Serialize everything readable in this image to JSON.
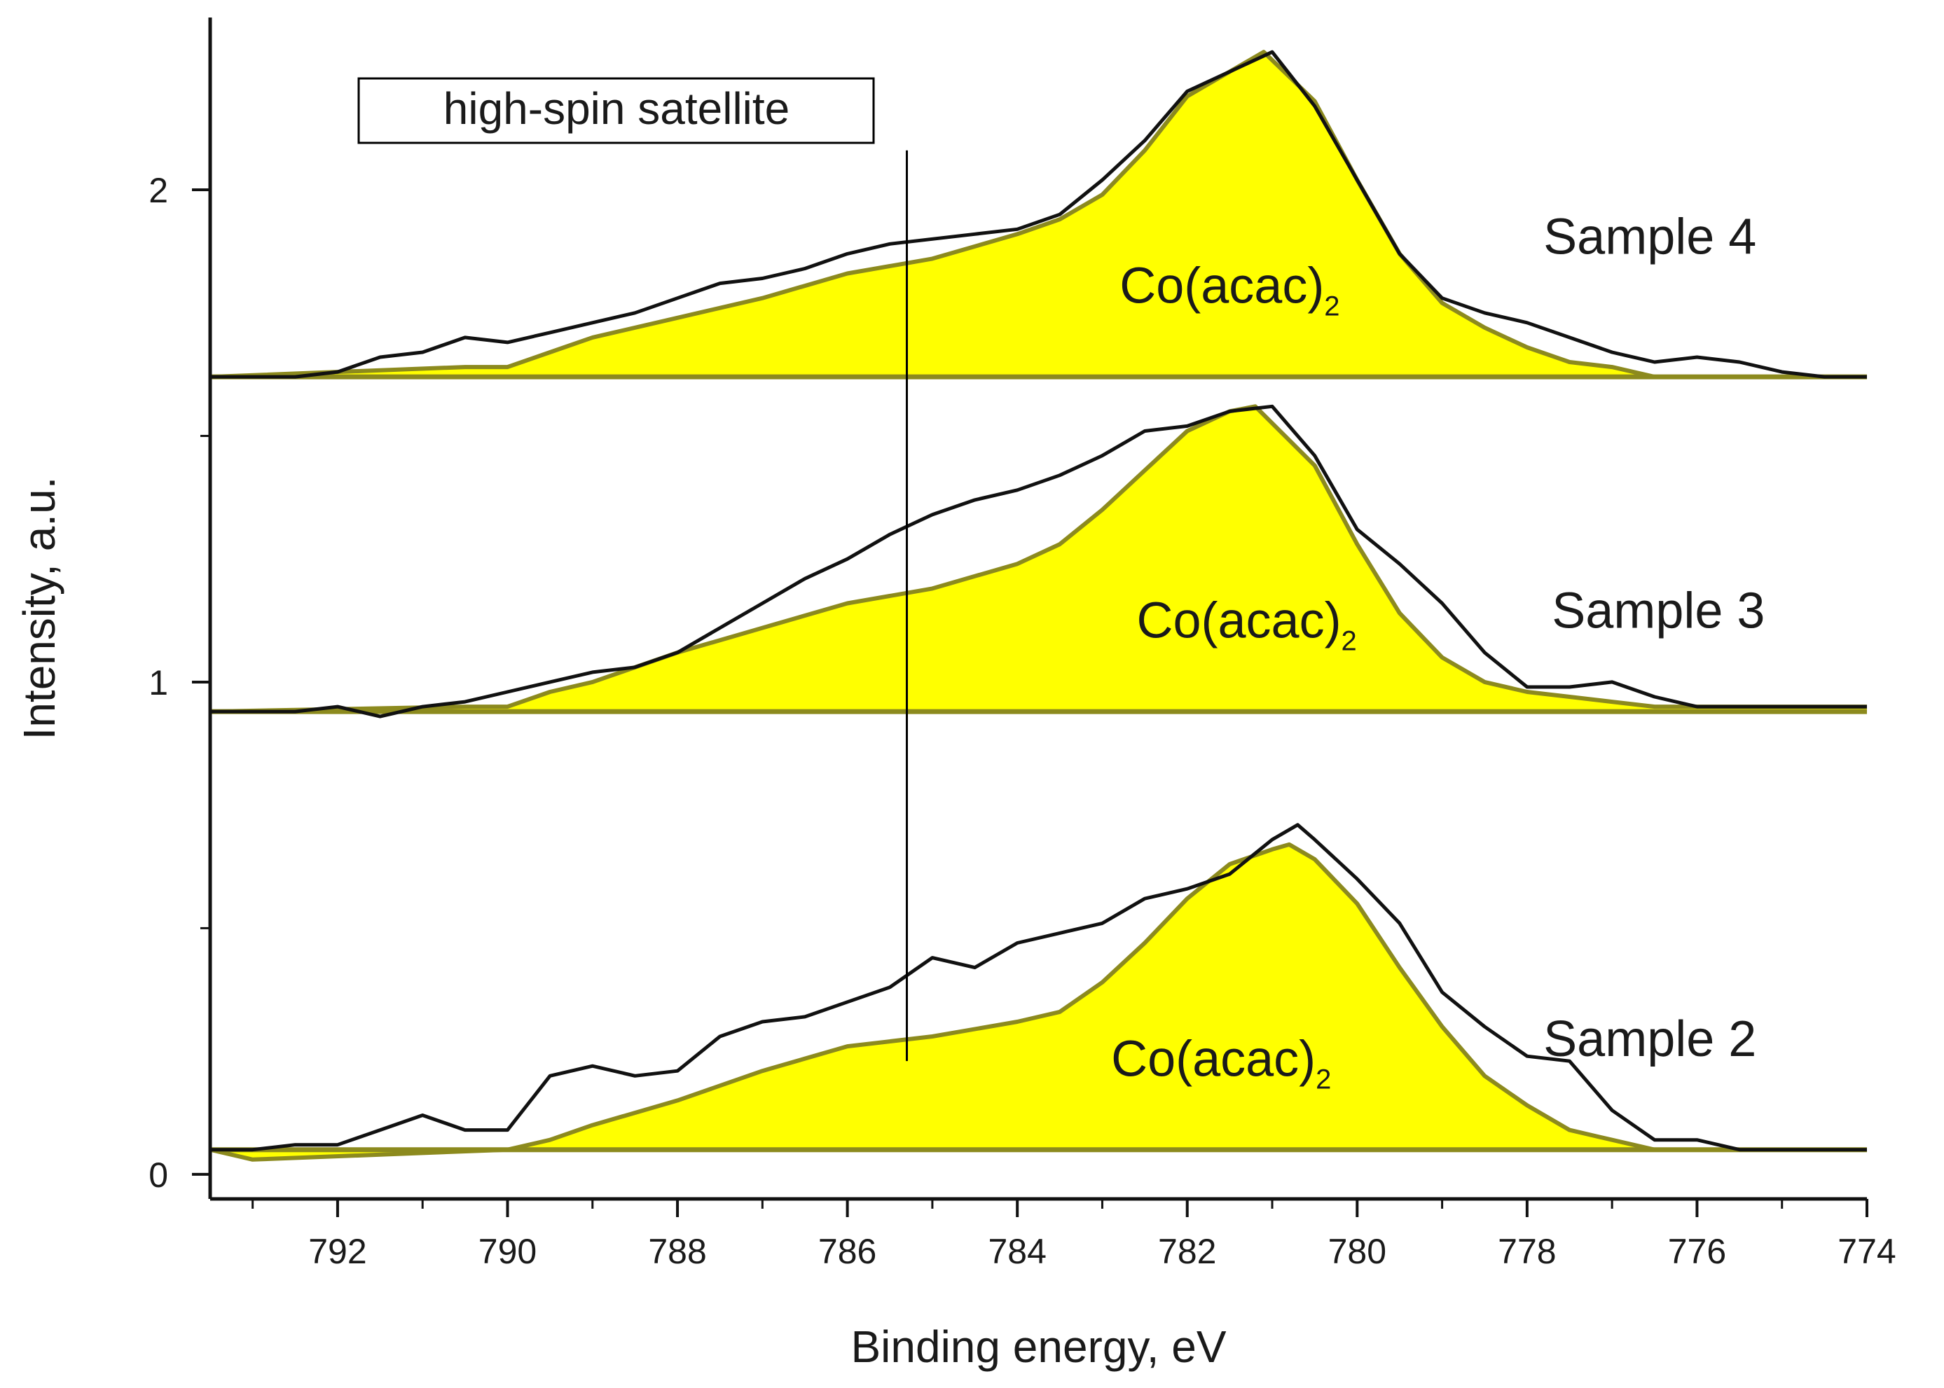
{
  "chart_data": {
    "type": "line",
    "title": "",
    "xlabel": "Binding energy, eV",
    "ylabel": "Intensity, a.u.",
    "xlim": [
      793.5,
      774
    ],
    "ylim": [
      -0.05,
      2.35
    ],
    "x_ticks": [
      792,
      790,
      788,
      786,
      784,
      782,
      780,
      778,
      776,
      774
    ],
    "y_ticks_major": [
      0,
      1,
      2
    ],
    "y_ticks_minor": [
      0.5,
      1.5
    ],
    "colors": {
      "measured": "#111111",
      "fit_fill": "#ffff00",
      "fit_edge": "#8c8a1e",
      "axis": "#111111"
    },
    "annotation": {
      "text": "high-spin satellite",
      "x": 785.3,
      "line_from": 2.08,
      "line_to": 0.23
    },
    "series": [
      {
        "name": "Sample 4",
        "fit_label": "Co(acac)",
        "fit_subscript": "2",
        "label_x": 775.3,
        "label_y": 1.87,
        "fit_label_x": 781.5,
        "fit_label_y": 1.77,
        "baseline": 1.62,
        "measured": [
          [
            793.5,
            1.62
          ],
          [
            792.5,
            1.62
          ],
          [
            792,
            1.63
          ],
          [
            791.5,
            1.66
          ],
          [
            791,
            1.67
          ],
          [
            790.5,
            1.7
          ],
          [
            790,
            1.69
          ],
          [
            789.5,
            1.71
          ],
          [
            789,
            1.73
          ],
          [
            788.5,
            1.75
          ],
          [
            788,
            1.78
          ],
          [
            787.5,
            1.81
          ],
          [
            787,
            1.82
          ],
          [
            786.5,
            1.84
          ],
          [
            786,
            1.87
          ],
          [
            785.5,
            1.89
          ],
          [
            785,
            1.9
          ],
          [
            784.5,
            1.91
          ],
          [
            784,
            1.92
          ],
          [
            783.5,
            1.95
          ],
          [
            783,
            2.02
          ],
          [
            782.5,
            2.1
          ],
          [
            782,
            2.2
          ],
          [
            781.5,
            2.24
          ],
          [
            781,
            2.28
          ],
          [
            780.5,
            2.17
          ],
          [
            780,
            2.02
          ],
          [
            779.5,
            1.87
          ],
          [
            779,
            1.78
          ],
          [
            778.5,
            1.75
          ],
          [
            778,
            1.73
          ],
          [
            777.5,
            1.7
          ],
          [
            777,
            1.67
          ],
          [
            776.5,
            1.65
          ],
          [
            776,
            1.66
          ],
          [
            775.5,
            1.65
          ],
          [
            775,
            1.63
          ],
          [
            774.5,
            1.62
          ],
          [
            774,
            1.62
          ]
        ],
        "fit": [
          [
            793.5,
            1.62
          ],
          [
            790.5,
            1.64
          ],
          [
            790,
            1.64
          ],
          [
            789.5,
            1.67
          ],
          [
            789,
            1.7
          ],
          [
            788,
            1.74
          ],
          [
            787,
            1.78
          ],
          [
            786,
            1.83
          ],
          [
            785,
            1.86
          ],
          [
            784,
            1.91
          ],
          [
            783.5,
            1.94
          ],
          [
            783,
            1.99
          ],
          [
            782.5,
            2.08
          ],
          [
            782,
            2.19
          ],
          [
            781.5,
            2.24
          ],
          [
            781.1,
            2.28
          ],
          [
            780.5,
            2.18
          ],
          [
            780,
            2.02
          ],
          [
            779.5,
            1.87
          ],
          [
            779,
            1.77
          ],
          [
            778.5,
            1.72
          ],
          [
            778,
            1.68
          ],
          [
            777.5,
            1.65
          ],
          [
            777,
            1.64
          ],
          [
            776.5,
            1.62
          ],
          [
            774,
            1.62
          ]
        ]
      },
      {
        "name": "Sample 3",
        "fit_label": "Co(acac)",
        "fit_subscript": "2",
        "label_x": 775.2,
        "label_y": 1.11,
        "fit_label_x": 781.3,
        "fit_label_y": 1.09,
        "baseline": 0.94,
        "measured": [
          [
            793.5,
            0.94
          ],
          [
            792.5,
            0.94
          ],
          [
            792,
            0.95
          ],
          [
            791.5,
            0.93
          ],
          [
            791,
            0.95
          ],
          [
            790.5,
            0.96
          ],
          [
            790,
            0.98
          ],
          [
            789.5,
            1.0
          ],
          [
            789,
            1.02
          ],
          [
            788.5,
            1.03
          ],
          [
            788,
            1.06
          ],
          [
            787.5,
            1.11
          ],
          [
            787,
            1.16
          ],
          [
            786.5,
            1.21
          ],
          [
            786,
            1.25
          ],
          [
            785.5,
            1.3
          ],
          [
            785,
            1.34
          ],
          [
            784.5,
            1.37
          ],
          [
            784,
            1.39
          ],
          [
            783.5,
            1.42
          ],
          [
            783,
            1.46
          ],
          [
            782.5,
            1.51
          ],
          [
            782,
            1.52
          ],
          [
            781.5,
            1.55
          ],
          [
            781,
            1.56
          ],
          [
            780.5,
            1.46
          ],
          [
            780,
            1.31
          ],
          [
            779.5,
            1.24
          ],
          [
            779,
            1.16
          ],
          [
            778.5,
            1.06
          ],
          [
            778,
            0.99
          ],
          [
            777.5,
            0.99
          ],
          [
            777,
            1.0
          ],
          [
            776.5,
            0.97
          ],
          [
            776,
            0.95
          ],
          [
            774,
            0.95
          ]
        ],
        "fit": [
          [
            793.5,
            0.94
          ],
          [
            790.5,
            0.95
          ],
          [
            790,
            0.95
          ],
          [
            789.5,
            0.98
          ],
          [
            789,
            1.0
          ],
          [
            788,
            1.06
          ],
          [
            787,
            1.11
          ],
          [
            786,
            1.16
          ],
          [
            785,
            1.19
          ],
          [
            784,
            1.24
          ],
          [
            783.5,
            1.28
          ],
          [
            783,
            1.35
          ],
          [
            782.5,
            1.43
          ],
          [
            782,
            1.51
          ],
          [
            781.5,
            1.55
          ],
          [
            781.2,
            1.56
          ],
          [
            780.5,
            1.44
          ],
          [
            780,
            1.28
          ],
          [
            779.5,
            1.14
          ],
          [
            779,
            1.05
          ],
          [
            778.5,
            1.0
          ],
          [
            778,
            0.98
          ],
          [
            777.5,
            0.97
          ],
          [
            777,
            0.96
          ],
          [
            776.5,
            0.95
          ],
          [
            774,
            0.95
          ]
        ]
      },
      {
        "name": "Sample 2",
        "fit_label": "Co(acac)",
        "fit_subscript": "2",
        "label_x": 775.3,
        "label_y": 0.24,
        "fit_label_x": 781.6,
        "fit_label_y": 0.2,
        "baseline": 0.05,
        "measured": [
          [
            793.5,
            0.05
          ],
          [
            793,
            0.05
          ],
          [
            792.5,
            0.06
          ],
          [
            792,
            0.06
          ],
          [
            791.5,
            0.09
          ],
          [
            791,
            0.12
          ],
          [
            790.5,
            0.09
          ],
          [
            790,
            0.09
          ],
          [
            789.5,
            0.2
          ],
          [
            789,
            0.22
          ],
          [
            788.5,
            0.2
          ],
          [
            788,
            0.21
          ],
          [
            787.5,
            0.28
          ],
          [
            787,
            0.31
          ],
          [
            786.5,
            0.32
          ],
          [
            786,
            0.35
          ],
          [
            785.5,
            0.38
          ],
          [
            785,
            0.44
          ],
          [
            784.5,
            0.42
          ],
          [
            784,
            0.47
          ],
          [
            783.5,
            0.49
          ],
          [
            783,
            0.51
          ],
          [
            782.5,
            0.56
          ],
          [
            782,
            0.58
          ],
          [
            781.5,
            0.61
          ],
          [
            781,
            0.68
          ],
          [
            780.7,
            0.71
          ],
          [
            780.5,
            0.68
          ],
          [
            780,
            0.6
          ],
          [
            779.5,
            0.51
          ],
          [
            779,
            0.37
          ],
          [
            778.5,
            0.3
          ],
          [
            778,
            0.24
          ],
          [
            777.5,
            0.23
          ],
          [
            777,
            0.13
          ],
          [
            776.5,
            0.07
          ],
          [
            776,
            0.07
          ],
          [
            775.5,
            0.05
          ],
          [
            774,
            0.05
          ]
        ],
        "fit": [
          [
            793.5,
            0.05
          ],
          [
            793,
            0.03
          ],
          [
            790,
            0.05
          ],
          [
            789.5,
            0.07
          ],
          [
            789,
            0.1
          ],
          [
            788,
            0.15
          ],
          [
            787,
            0.21
          ],
          [
            786,
            0.26
          ],
          [
            785,
            0.28
          ],
          [
            784,
            0.31
          ],
          [
            783.5,
            0.33
          ],
          [
            783,
            0.39
          ],
          [
            782.5,
            0.47
          ],
          [
            782,
            0.56
          ],
          [
            781.5,
            0.63
          ],
          [
            781,
            0.66
          ],
          [
            780.8,
            0.67
          ],
          [
            780.5,
            0.64
          ],
          [
            780,
            0.55
          ],
          [
            779.5,
            0.42
          ],
          [
            779,
            0.3
          ],
          [
            778.5,
            0.2
          ],
          [
            778,
            0.14
          ],
          [
            777.5,
            0.09
          ],
          [
            777,
            0.07
          ],
          [
            776.5,
            0.05
          ],
          [
            774,
            0.05
          ]
        ]
      }
    ]
  }
}
